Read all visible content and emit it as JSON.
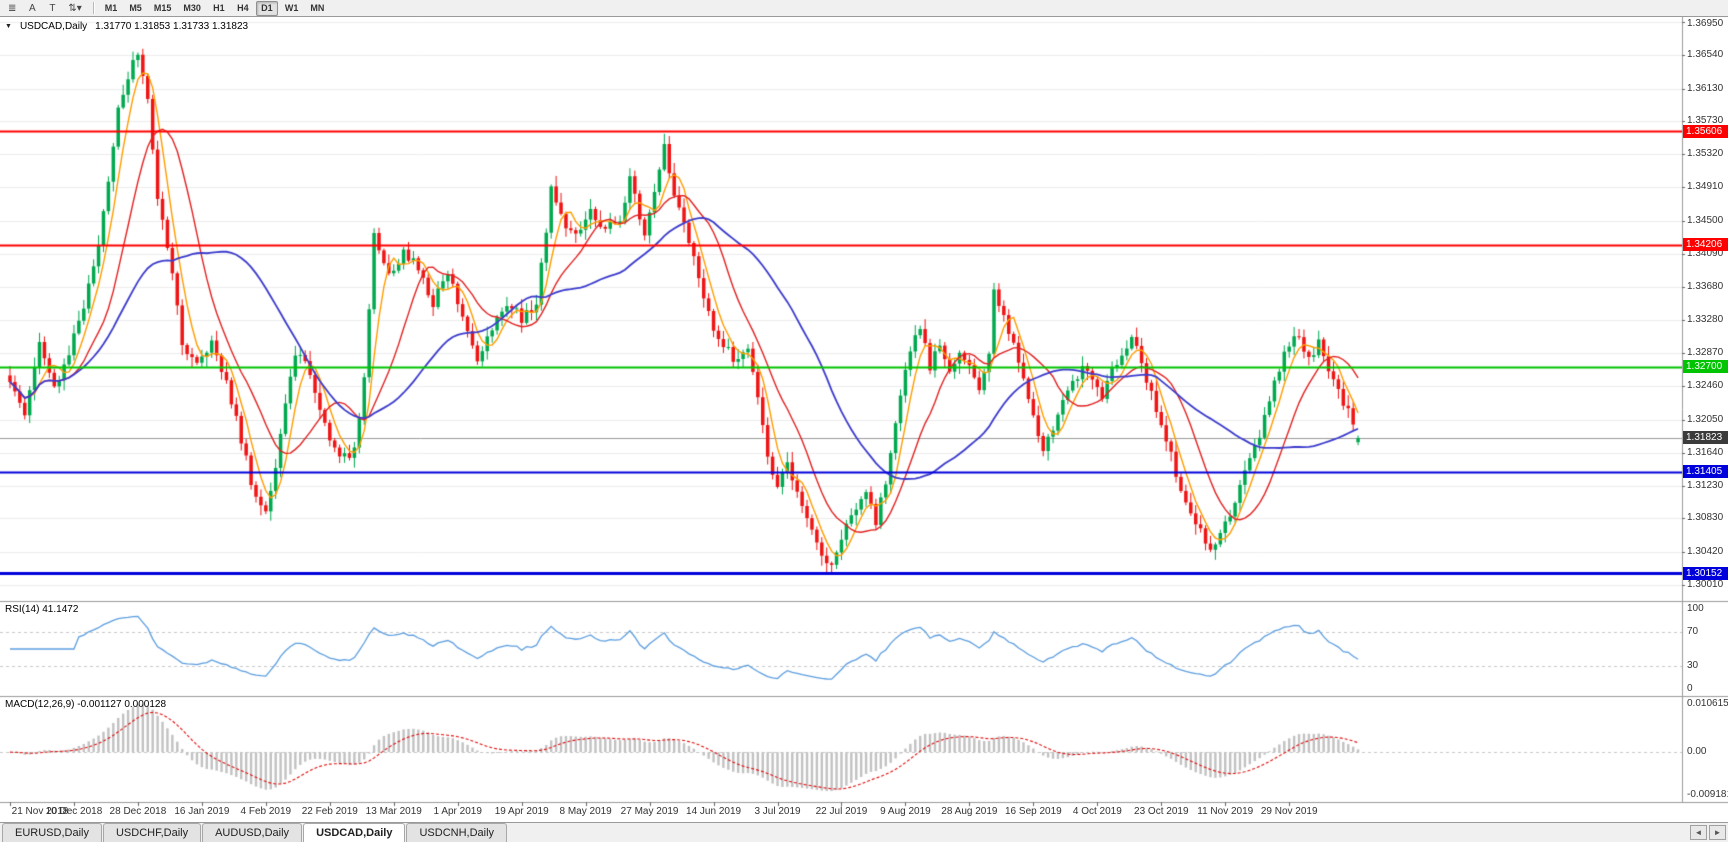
{
  "toolbar": {
    "icons": [
      {
        "name": "charts-grid-icon",
        "glyph": "≣"
      },
      {
        "name": "cursor-icon",
        "glyph": "A"
      },
      {
        "name": "text-label-icon",
        "glyph": "T"
      },
      {
        "name": "draw-tools-icon",
        "glyph": "⇅▾"
      }
    ],
    "timeframes": [
      "M1",
      "M5",
      "M15",
      "M30",
      "H1",
      "H4",
      "D1",
      "W1",
      "MN"
    ],
    "active_timeframe": "D1"
  },
  "chart": {
    "marker": "▼",
    "symbol": "USDCAD,Daily",
    "ohlc": "1.31770 1.31853 1.31733 1.31823",
    "price_axis": [
      "1.36950",
      "1.36540",
      "1.36130",
      "1.35730",
      "1.35320",
      "1.34910",
      "1.34500",
      "1.34090",
      "1.33680",
      "1.33280",
      "1.32870",
      "1.32460",
      "1.32050",
      "1.31640",
      "1.31230",
      "1.30830",
      "1.30420",
      "1.30010"
    ],
    "hlines": [
      {
        "price": 1.35606,
        "label": "1.35606",
        "color": "#ff0000",
        "width": 2
      },
      {
        "price": 1.34206,
        "label": "1.34206",
        "color": "#ff0000",
        "width": 2
      },
      {
        "price": 1.327,
        "label": "1.32700",
        "color": "#00c400",
        "width": 2
      },
      {
        "price": 1.31405,
        "label": "1.31405",
        "color": "#0000dc",
        "width": 2
      },
      {
        "price": 1.30152,
        "label": "1.30152",
        "color": "#0000dc",
        "width": 3
      }
    ],
    "current_price": {
      "price": 1.31823,
      "label": "1.31823"
    }
  },
  "rsi": {
    "label": "RSI(14) 41.1472",
    "value": 41.1472,
    "axis": [
      "100",
      "70",
      "30",
      "0"
    ],
    "levels": [
      70,
      30
    ]
  },
  "macd": {
    "label": "MACD(12,26,9) -0.001127 0.000128",
    "value_main": -0.001127,
    "value_signal": 0.000128,
    "axis": [
      "0.010615",
      "0.00",
      "-0.009181"
    ]
  },
  "date_axis": [
    "21 Nov 2018",
    "10 Dec 2018",
    "28 Dec 2018",
    "16 Jan 2019",
    "4 Feb 2019",
    "22 Feb 2019",
    "13 Mar 2019",
    "1 Apr 2019",
    "19 Apr 2019",
    "8 May 2019",
    "27 May 2019",
    "14 Jun 2019",
    "3 Jul 2019",
    "22 Jul 2019",
    "9 Aug 2019",
    "28 Aug 2019",
    "16 Sep 2019",
    "4 Oct 2019",
    "23 Oct 2019",
    "11 Nov 2019",
    "29 Nov 2019"
  ],
  "tabs": {
    "items": [
      {
        "label": "EURUSD,Daily",
        "active": false
      },
      {
        "label": "USDCHF,Daily",
        "active": false
      },
      {
        "label": "AUDUSD,Daily",
        "active": false
      },
      {
        "label": "USDCAD,Daily",
        "active": true
      },
      {
        "label": "USDCNH,Daily",
        "active": false
      }
    ],
    "scroll_left": "◄",
    "scroll_right": "►"
  },
  "colors": {
    "up": "#00a94f",
    "down": "#ef1515",
    "ma_fast": "#ff9d00",
    "ma_mid": "#e32222",
    "ma_slow": "#3c3ccd",
    "rsi_line": "#5e9fe0",
    "macd_hist": "#c2c2c2",
    "macd_signal": "#e01010",
    "grid": "#ededed",
    "panel_border": "#9a9a9a",
    "level_dash": "#c9c9c9",
    "current_line": "#9a9a9a",
    "current_badge": "#3b3b3b",
    "axis_text": "#333333"
  },
  "chart_data": {
    "type": "candlestick",
    "symbol": "USDCAD",
    "timeframe": "Daily",
    "candle_count": 275,
    "candles_per_date_tick": 13,
    "price_range_visible": [
      1.3001,
      1.3695
    ],
    "last_candle": {
      "open": 1.3177,
      "high": 1.31853,
      "low": 1.31733,
      "close": 1.31823
    },
    "ma_periods": {
      "fast": 5,
      "mid": 13,
      "slow": 34
    },
    "rsi_period": 14,
    "macd_params": [
      12,
      26,
      9
    ],
    "anchors": [
      [
        0,
        1.3255
      ],
      [
        3,
        1.3215
      ],
      [
        6,
        1.33
      ],
      [
        9,
        1.324
      ],
      [
        12,
        1.329
      ],
      [
        15,
        1.3345
      ],
      [
        18,
        1.342
      ],
      [
        20,
        1.35
      ],
      [
        22,
        1.359
      ],
      [
        24,
        1.363
      ],
      [
        26,
        1.3655
      ],
      [
        28,
        1.36
      ],
      [
        30,
        1.348
      ],
      [
        33,
        1.339
      ],
      [
        35,
        1.3295
      ],
      [
        38,
        1.327
      ],
      [
        41,
        1.33
      ],
      [
        44,
        1.3255
      ],
      [
        47,
        1.318
      ],
      [
        50,
        1.3105
      ],
      [
        52,
        1.309
      ],
      [
        54,
        1.314
      ],
      [
        56,
        1.323
      ],
      [
        58,
        1.329
      ],
      [
        61,
        1.3265
      ],
      [
        64,
        1.32
      ],
      [
        67,
        1.3155
      ],
      [
        70,
        1.3165
      ],
      [
        72,
        1.326
      ],
      [
        74,
        1.343
      ],
      [
        77,
        1.338
      ],
      [
        80,
        1.3415
      ],
      [
        83,
        1.339
      ],
      [
        86,
        1.335
      ],
      [
        89,
        1.3385
      ],
      [
        92,
        1.3335
      ],
      [
        95,
        1.3275
      ],
      [
        98,
        1.332
      ],
      [
        101,
        1.335
      ],
      [
        104,
        1.333
      ],
      [
        107,
        1.3345
      ],
      [
        110,
        1.349
      ],
      [
        112,
        1.3455
      ],
      [
        115,
        1.343
      ],
      [
        118,
        1.346
      ],
      [
        121,
        1.344
      ],
      [
        124,
        1.3455
      ],
      [
        126,
        1.35
      ],
      [
        129,
        1.3435
      ],
      [
        131,
        1.349
      ],
      [
        133,
        1.3545
      ],
      [
        135,
        1.348
      ],
      [
        137,
        1.345
      ],
      [
        139,
        1.34
      ],
      [
        141,
        1.335
      ],
      [
        144,
        1.3305
      ],
      [
        147,
        1.328
      ],
      [
        150,
        1.329
      ],
      [
        152,
        1.323
      ],
      [
        154,
        1.3155
      ],
      [
        156,
        1.312
      ],
      [
        158,
        1.315
      ],
      [
        160,
        1.311
      ],
      [
        163,
        1.307
      ],
      [
        165,
        1.3035
      ],
      [
        167,
        1.3022
      ],
      [
        169,
        1.306
      ],
      [
        171,
        1.309
      ],
      [
        174,
        1.311
      ],
      [
        176,
        1.308
      ],
      [
        178,
        1.313
      ],
      [
        180,
        1.32
      ],
      [
        183,
        1.329
      ],
      [
        185,
        1.332
      ],
      [
        187,
        1.327
      ],
      [
        189,
        1.33
      ],
      [
        191,
        1.326
      ],
      [
        193,
        1.329
      ],
      [
        195,
        1.3268
      ],
      [
        197,
        1.3242
      ],
      [
        199,
        1.3285
      ],
      [
        200,
        1.336
      ],
      [
        202,
        1.333
      ],
      [
        204,
        1.33
      ],
      [
        206,
        1.326
      ],
      [
        208,
        1.321
      ],
      [
        210,
        1.317
      ],
      [
        212,
        1.319
      ],
      [
        214,
        1.323
      ],
      [
        216,
        1.325
      ],
      [
        218,
        1.327
      ],
      [
        220,
        1.3252
      ],
      [
        222,
        1.3232
      ],
      [
        224,
        1.3262
      ],
      [
        226,
        1.3285
      ],
      [
        228,
        1.331
      ],
      [
        230,
        1.327
      ],
      [
        232,
        1.324
      ],
      [
        234,
        1.32
      ],
      [
        236,
        1.316
      ],
      [
        238,
        1.312
      ],
      [
        240,
        1.309
      ],
      [
        242,
        1.3065
      ],
      [
        244,
        1.3045
      ],
      [
        246,
        1.306
      ],
      [
        248,
        1.309
      ],
      [
        250,
        1.312
      ],
      [
        252,
        1.3155
      ],
      [
        254,
        1.3185
      ],
      [
        256,
        1.323
      ],
      [
        258,
        1.327
      ],
      [
        260,
        1.33
      ],
      [
        262,
        1.331
      ],
      [
        264,
        1.328
      ],
      [
        266,
        1.33
      ],
      [
        268,
        1.3265
      ],
      [
        270,
        1.324
      ],
      [
        272,
        1.3215
      ],
      [
        274,
        1.31823
      ]
    ]
  }
}
